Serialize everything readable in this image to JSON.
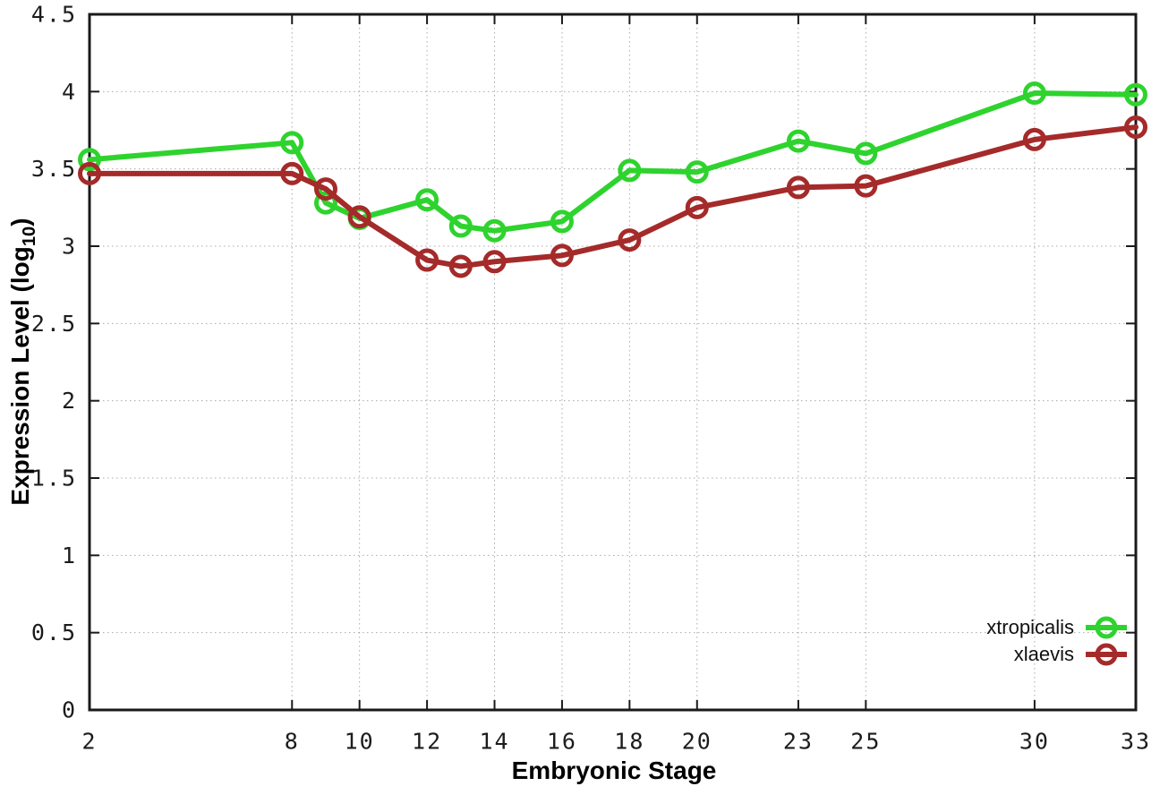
{
  "figure": {
    "background": "#ffffff",
    "border_color": "#1a1a1a",
    "grid_color": "#a9a9a9",
    "tick_color": "#1a1a1a",
    "tick_label_color": "#1c1c1c"
  },
  "chart_data": {
    "type": "line",
    "title": "",
    "xlabel": "Embryonic Stage",
    "ylabel": "Expression Level (log10)",
    "ylabel_parts": {
      "main": "Expression Level (log",
      "sub": "10",
      "close": ")"
    },
    "x": [
      2,
      8,
      9,
      10,
      12,
      13,
      14,
      16,
      18,
      20,
      23,
      25,
      30,
      33
    ],
    "series": [
      {
        "name": "xtropicalis",
        "color": "#2ed32e",
        "values": [
          3.56,
          3.67,
          3.28,
          3.18,
          3.3,
          3.13,
          3.1,
          3.16,
          3.49,
          3.48,
          3.68,
          3.6,
          3.99,
          3.98
        ]
      },
      {
        "name": "xlaevis",
        "color": "#a52a2a",
        "values": [
          3.47,
          3.47,
          3.37,
          3.19,
          2.91,
          2.87,
          2.9,
          2.94,
          3.04,
          3.25,
          3.38,
          3.39,
          3.69,
          3.77
        ]
      }
    ],
    "xlim": [
      2,
      33
    ],
    "ylim": [
      0,
      4.5
    ],
    "xticks": {
      "values": [
        2,
        8,
        10,
        12,
        14,
        16,
        18,
        20,
        23,
        25,
        30,
        33
      ],
      "labels": [
        "2",
        "8",
        "10",
        "12",
        "14",
        "16",
        "18",
        "20",
        "23",
        "25",
        "30",
        "33"
      ]
    },
    "yticks": {
      "values": [
        0,
        0.5,
        1,
        1.5,
        2,
        2.5,
        3,
        3.5,
        4,
        4.5
      ],
      "labels": [
        "0",
        "0.5",
        "1",
        "1.5",
        "2",
        "2.5",
        "3",
        "3.5",
        "4",
        "4.5"
      ]
    },
    "grid": true,
    "grid_style": "dotted",
    "marker": "open-circle",
    "legend_position": "bottom-right",
    "legend_entries": [
      "xtropicalis",
      "xlaevis"
    ]
  }
}
